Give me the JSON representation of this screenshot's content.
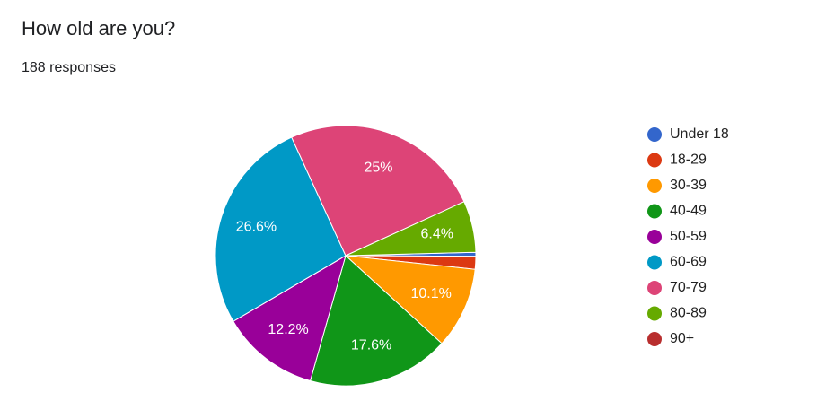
{
  "chart_data": {
    "type": "pie",
    "title": "How old are you?",
    "subtitle": "188 responses",
    "categories": [
      "Under 18",
      "18-29",
      "30-39",
      "40-49",
      "50-59",
      "60-69",
      "70-79",
      "80-89",
      "90+"
    ],
    "values": [
      0.5,
      1.6,
      10.1,
      17.6,
      12.2,
      26.6,
      25,
      6.4,
      0
    ],
    "value_labels": [
      null,
      null,
      "10.1%",
      "17.6%",
      "12.2%",
      "26.6%",
      "25%",
      "6.4%",
      null
    ],
    "colors": [
      "#3366cc",
      "#dc3912",
      "#ff9900",
      "#109618",
      "#990099",
      "#0099c6",
      "#dd4477",
      "#66aa00",
      "#b82e2e"
    ],
    "legend": "right"
  }
}
